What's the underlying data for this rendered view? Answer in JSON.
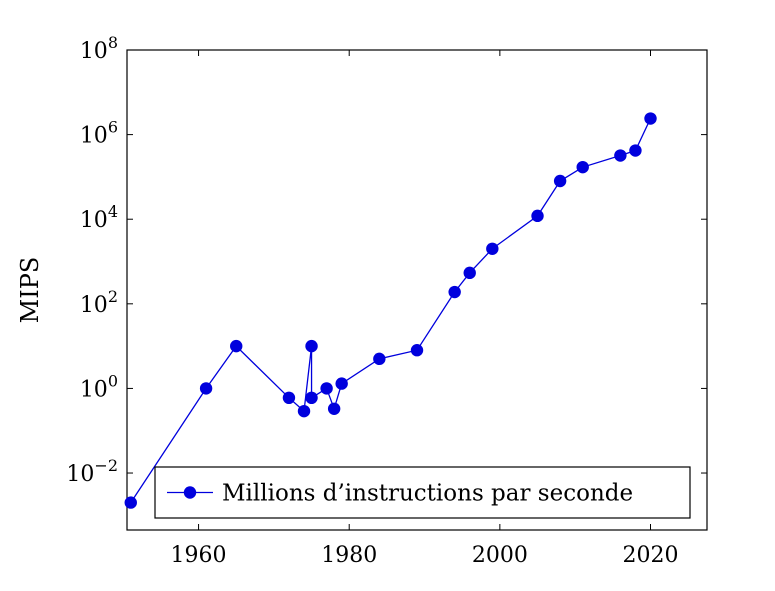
{
  "chart_data": {
    "type": "line",
    "title": "",
    "xlabel": "",
    "ylabel": "MIPS",
    "x_scale": "linear",
    "y_scale": "log",
    "xlim": [
      1950.5,
      2027.5
    ],
    "ylim": [
      0.00045,
      100000000
    ],
    "x_ticks": [
      1960,
      1980,
      2000,
      2020
    ],
    "y_ticks": [
      {
        "value": 0.01,
        "base": "10",
        "exp": "−2"
      },
      {
        "value": 1,
        "base": "10",
        "exp": "0"
      },
      {
        "value": 100,
        "base": "10",
        "exp": "2"
      },
      {
        "value": 10000,
        "base": "10",
        "exp": "4"
      },
      {
        "value": 1000000,
        "base": "10",
        "exp": "6"
      },
      {
        "value": 100000000,
        "base": "10",
        "exp": "8"
      }
    ],
    "grid": false,
    "legend_position": "bottom-left",
    "colors": {
      "series": "#0000dd",
      "axis": "#000000",
      "background": "#ffffff"
    },
    "series": [
      {
        "name": "Millions d’instructions par seconde",
        "marker": "circle",
        "points": [
          {
            "x": 1951,
            "y": 0.002
          },
          {
            "x": 1961,
            "y": 1.0
          },
          {
            "x": 1965,
            "y": 10
          },
          {
            "x": 1972,
            "y": 0.6
          },
          {
            "x": 1974,
            "y": 0.29
          },
          {
            "x": 1975,
            "y": 10
          },
          {
            "x": 1975,
            "y": 0.6
          },
          {
            "x": 1977,
            "y": 1.0
          },
          {
            "x": 1978,
            "y": 0.33
          },
          {
            "x": 1979,
            "y": 1.3
          },
          {
            "x": 1984,
            "y": 5
          },
          {
            "x": 1989,
            "y": 8
          },
          {
            "x": 1994,
            "y": 190
          },
          {
            "x": 1996,
            "y": 540
          },
          {
            "x": 1999,
            "y": 2000
          },
          {
            "x": 2005,
            "y": 12000
          },
          {
            "x": 2008,
            "y": 80000
          },
          {
            "x": 2011,
            "y": 170000
          },
          {
            "x": 2016,
            "y": 320000
          },
          {
            "x": 2018,
            "y": 420000
          },
          {
            "x": 2020,
            "y": 2400000
          }
        ]
      }
    ]
  }
}
